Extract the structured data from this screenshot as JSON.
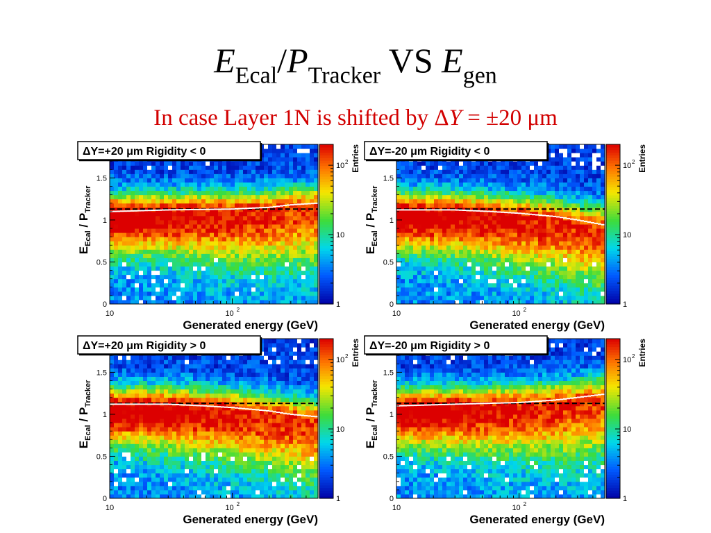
{
  "title": {
    "E": "E",
    "ecal": "Ecal",
    "slash": "/",
    "P": "P",
    "tracker": "Tracker",
    "vs": " VS ",
    "E2": "E",
    "gen": "gen"
  },
  "subtitle": {
    "prefix": "In case Layer 1N is shifted by ",
    "delta": "Δ",
    "Y": "Y",
    "suffix": " = ±20 μm"
  },
  "colors": {
    "reference_line": "#000000",
    "profile": "#ffffff",
    "subtitle": "#d20000"
  },
  "chart_data": [
    {
      "type": "heatmap",
      "title": "ΔY=+20 μm  Rigidity < 0",
      "xlabel": "Generated energy (GeV)",
      "ylabel_main": "E",
      "ylabel_sub1": "Ecal",
      "ylabel_mid": " / P",
      "ylabel_sub2": "Tracker",
      "xscale": "log",
      "xlim": [
        10,
        500
      ],
      "ylim": [
        0,
        1.9
      ],
      "xticklabels": [
        "10",
        "10",
        "2"
      ],
      "yticklabels": [
        "0",
        "0.5",
        "1",
        "1.5"
      ],
      "yticks": [
        0,
        0.5,
        1,
        1.5
      ],
      "z_label": "Entries",
      "zscale": "log",
      "zlim": [
        1,
        200
      ],
      "zticklabels": [
        {
          "base": "1",
          "exp": "",
          "value": 1
        },
        {
          "base": "10",
          "exp": "",
          "value": 10
        },
        {
          "base": "10",
          "exp": "2",
          "value": 100
        }
      ],
      "reference_line_y": 1.13,
      "peak_trend": {
        "x": [
          10,
          30,
          100,
          200,
          300,
          500
        ],
        "y": [
          1.1,
          1.12,
          1.13,
          1.15,
          1.18,
          1.2
        ]
      }
    },
    {
      "type": "heatmap",
      "title": "ΔY=-20 μm  Rigidity < 0",
      "xlabel": "Generated energy (GeV)",
      "ylabel_main": "E",
      "ylabel_sub1": "Ecal",
      "ylabel_mid": " / P",
      "ylabel_sub2": "Tracker",
      "xscale": "log",
      "xlim": [
        10,
        500
      ],
      "ylim": [
        0,
        1.9
      ],
      "xticklabels": [
        "10",
        "10",
        "2"
      ],
      "yticklabels": [
        "0",
        "0.5",
        "1",
        "1.5"
      ],
      "yticks": [
        0,
        0.5,
        1,
        1.5
      ],
      "z_label": "Entries",
      "zscale": "log",
      "zlim": [
        1,
        200
      ],
      "zticklabels": [
        {
          "base": "1",
          "exp": "",
          "value": 1
        },
        {
          "base": "10",
          "exp": "",
          "value": 10
        },
        {
          "base": "10",
          "exp": "2",
          "value": 100
        }
      ],
      "reference_line_y": 1.13,
      "peak_trend": {
        "x": [
          10,
          30,
          60,
          100,
          200,
          300,
          500
        ],
        "y": [
          1.12,
          1.12,
          1.1,
          1.08,
          1.04,
          1.0,
          0.94
        ]
      }
    },
    {
      "type": "heatmap",
      "title": "ΔY=+20 μm  Rigidity > 0",
      "xlabel": "Generated energy (GeV)",
      "ylabel_main": "E",
      "ylabel_sub1": "Ecal",
      "ylabel_mid": " / P",
      "ylabel_sub2": "Tracker",
      "xscale": "log",
      "xlim": [
        10,
        500
      ],
      "ylim": [
        0,
        1.9
      ],
      "xticklabels": [
        "10",
        "10",
        "2"
      ],
      "yticklabels": [
        "0",
        "0.5",
        "1",
        "1.5"
      ],
      "yticks": [
        0,
        0.5,
        1,
        1.5
      ],
      "z_label": "Entries",
      "zscale": "log",
      "zlim": [
        1,
        200
      ],
      "zticklabels": [
        {
          "base": "1",
          "exp": "",
          "value": 1
        },
        {
          "base": "10",
          "exp": "",
          "value": 10
        },
        {
          "base": "10",
          "exp": "2",
          "value": 100
        }
      ],
      "reference_line_y": 1.13,
      "peak_trend": {
        "x": [
          10,
          30,
          60,
          100,
          200,
          300,
          500
        ],
        "y": [
          1.12,
          1.12,
          1.1,
          1.08,
          1.04,
          1.0,
          0.97
        ]
      }
    },
    {
      "type": "heatmap",
      "title": "ΔY=-20 μm  Rigidity > 0",
      "xlabel": "Generated energy (GeV)",
      "ylabel_main": "E",
      "ylabel_sub1": "Ecal",
      "ylabel_mid": " / P",
      "ylabel_sub2": "Tracker",
      "xscale": "log",
      "xlim": [
        10,
        500
      ],
      "ylim": [
        0,
        1.9
      ],
      "xticklabels": [
        "10",
        "10",
        "2"
      ],
      "yticklabels": [
        "0",
        "0.5",
        "1",
        "1.5"
      ],
      "yticks": [
        0,
        0.5,
        1,
        1.5
      ],
      "z_label": "Entries",
      "zscale": "log",
      "zlim": [
        1,
        200
      ],
      "zticklabels": [
        {
          "base": "1",
          "exp": "",
          "value": 1
        },
        {
          "base": "10",
          "exp": "",
          "value": 10
        },
        {
          "base": "10",
          "exp": "2",
          "value": 100
        }
      ],
      "reference_line_y": 1.13,
      "peak_trend": {
        "x": [
          10,
          30,
          100,
          200,
          300,
          500
        ],
        "y": [
          1.1,
          1.12,
          1.14,
          1.17,
          1.2,
          1.24
        ]
      }
    }
  ]
}
